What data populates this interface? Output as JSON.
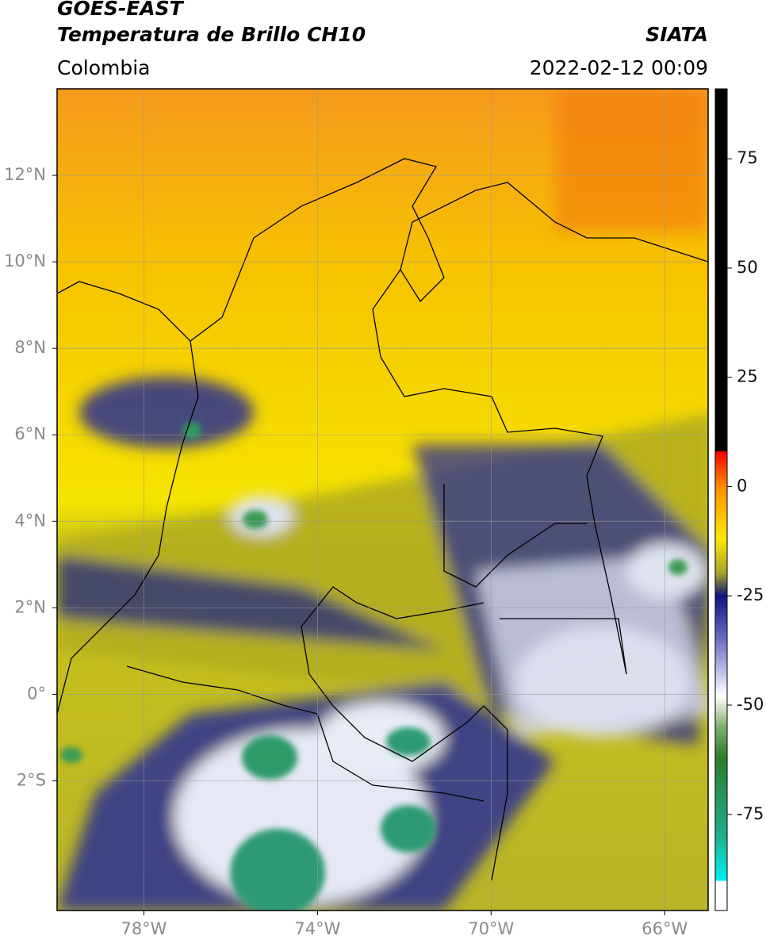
{
  "header": {
    "title": "GOES-EAST",
    "subtitle": "Temperatura de Brillo CH10",
    "source": "SIATA",
    "region": "Colombia",
    "datetime": "2022-02-12 00:09"
  },
  "map": {
    "xlim": [
      -80,
      -65
    ],
    "ylim": [
      -5,
      14
    ],
    "grid": true,
    "xticks": [
      {
        "value": -78,
        "label": "78°W"
      },
      {
        "value": -74,
        "label": "74°W"
      },
      {
        "value": -70,
        "label": "70°W"
      },
      {
        "value": -66,
        "label": "66°W"
      }
    ],
    "yticks": [
      {
        "value": 12,
        "label": "12°N"
      },
      {
        "value": 10,
        "label": "10°N"
      },
      {
        "value": 8,
        "label": "8°N"
      },
      {
        "value": 6,
        "label": "6°N"
      },
      {
        "value": 4,
        "label": "4°N"
      },
      {
        "value": 2,
        "label": "2°N"
      },
      {
        "value": 0,
        "label": "0°"
      },
      {
        "value": -2,
        "label": "2°S"
      }
    ]
  },
  "colorbar": {
    "lim": [
      -97,
      91
    ],
    "ticks": [
      75,
      50,
      25,
      0,
      -25,
      -50,
      -75
    ]
  }
}
